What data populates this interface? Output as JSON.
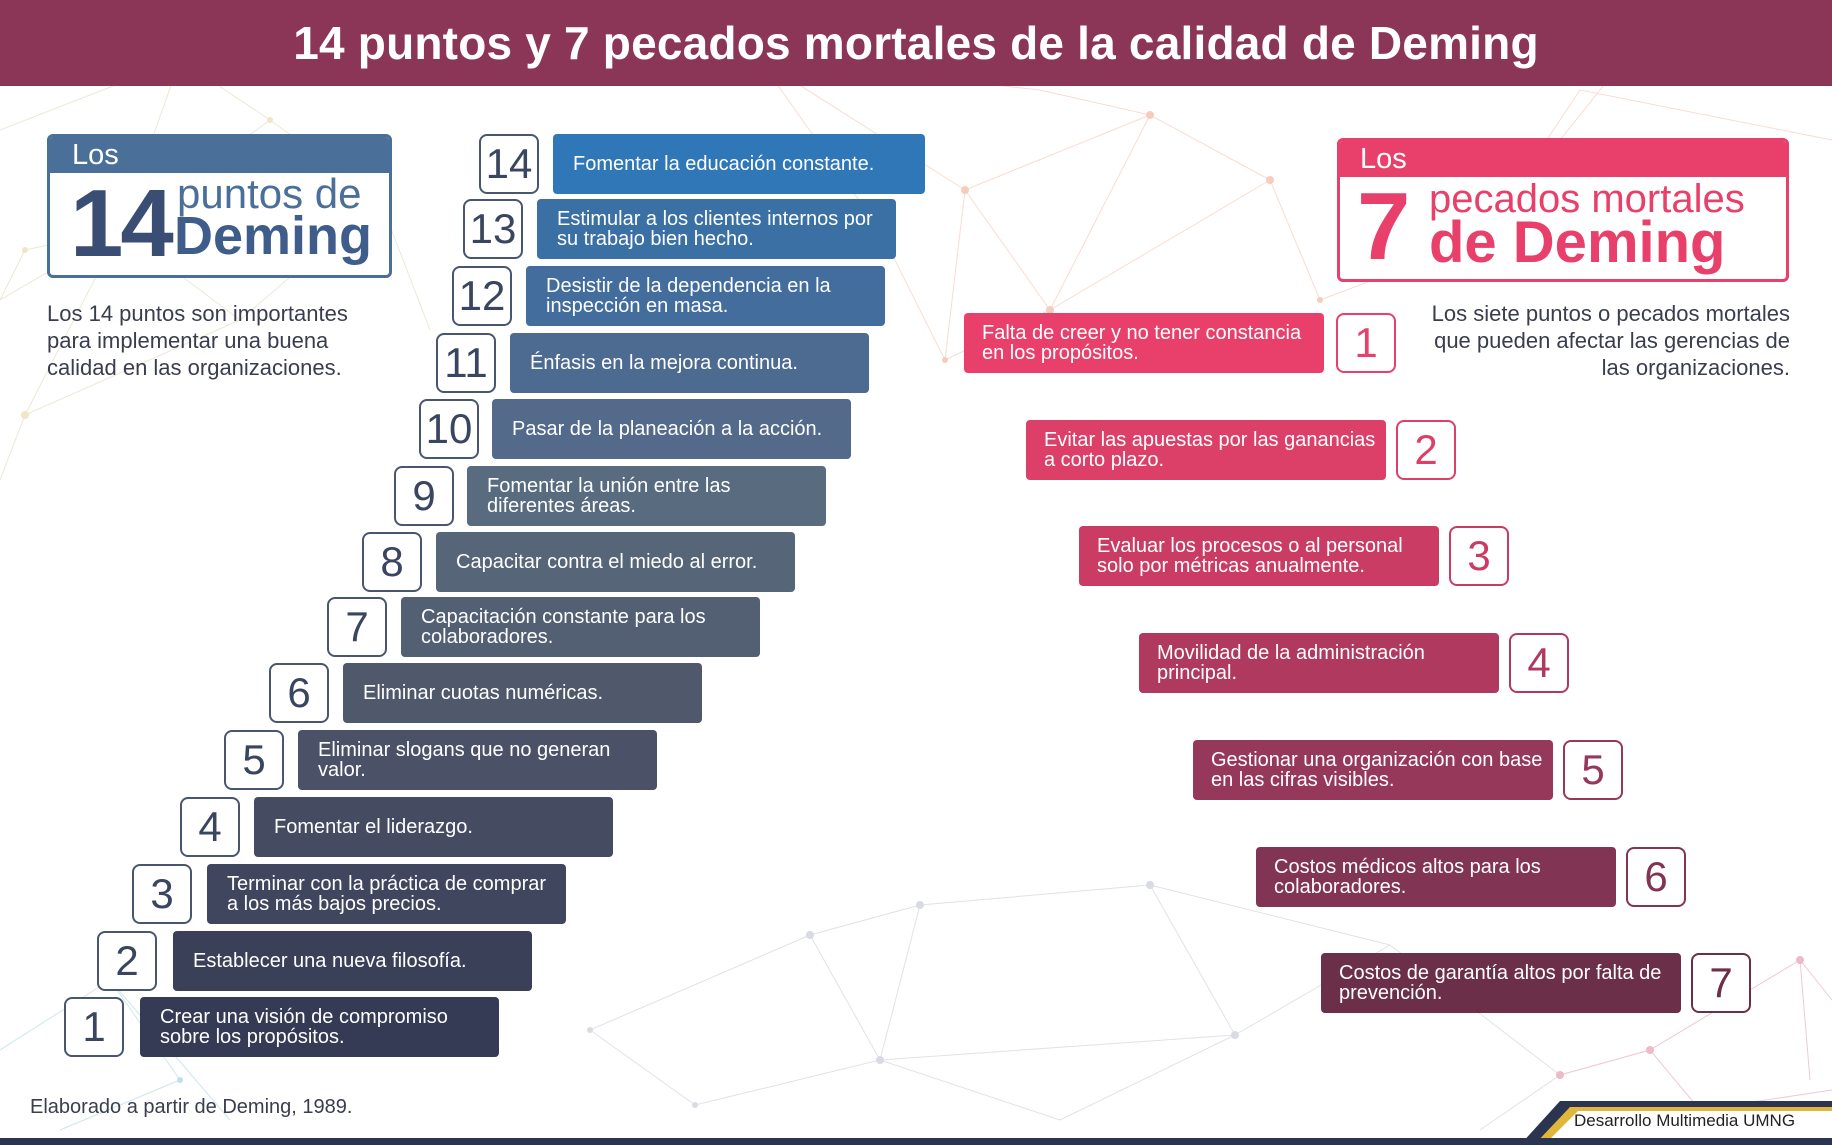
{
  "title": "14 puntos y 7 pecados mortales de la calidad de Deming",
  "left_title": {
    "tab": "Los",
    "number": "14",
    "line1": "puntos de",
    "line2": "Deming"
  },
  "left_description": "Los 14 puntos son importantes para implementar una buena calidad en las organizaciones.",
  "right_title": {
    "tab": "Los",
    "number": "7",
    "line1": "pecados mortales",
    "line2": "de Deming"
  },
  "right_description": "Los siete puntos o pecados mortales que pueden afectar las gerencias de las organizaciones.",
  "points": [
    {
      "number": "1",
      "text": "Crear una visión de compromiso sobre los propósitos."
    },
    {
      "number": "2",
      "text": "Establecer una nueva filosofía."
    },
    {
      "number": "3",
      "text": "Terminar con la práctica de comprar a los más bajos precios."
    },
    {
      "number": "4",
      "text": "Fomentar el liderazgo."
    },
    {
      "number": "5",
      "text": "Eliminar slogans que no generan valor."
    },
    {
      "number": "6",
      "text": "Eliminar cuotas numéricas."
    },
    {
      "number": "7",
      "text": "Capacitación constante para los colaboradores."
    },
    {
      "number": "8",
      "text": "Capacitar contra el miedo al error."
    },
    {
      "number": "9",
      "text": "Fomentar la unión entre las diferentes áreas."
    },
    {
      "number": "10",
      "text": "Pasar de la planeación a la acción."
    },
    {
      "number": "11",
      "text": "Énfasis en la mejora continua."
    },
    {
      "number": "12",
      "text": "Desistir de la dependencia en la inspección en masa."
    },
    {
      "number": "13",
      "text": "Estimular a los clientes internos por su trabajo bien hecho."
    },
    {
      "number": "14",
      "text": "Fomentar la educación constante."
    }
  ],
  "sins": [
    {
      "number": "1",
      "text": "Falta de creer y no tener constancia en los propósitos."
    },
    {
      "number": "2",
      "text": "Evitar las apuestas por las ganancias a corto plazo."
    },
    {
      "number": "3",
      "text": "Evaluar los procesos o al personal solo por métricas anualmente."
    },
    {
      "number": "4",
      "text": "Movilidad de la administración principal."
    },
    {
      "number": "5",
      "text": "Gestionar una organización con base en las cifras visibles."
    },
    {
      "number": "6",
      "text": "Costos médicos altos para los colaboradores."
    },
    {
      "number": "7",
      "text": "Costos de garantía altos por falta de prevención."
    }
  ],
  "colors": {
    "header": "#8b3557",
    "points": [
      "#353a55",
      "#3b4059",
      "#40465e",
      "#454c62",
      "#4b5267",
      "#50586c",
      "#535f73",
      "#566578",
      "#586b7f",
      "#536a8a",
      "#4d6a91",
      "#436d9c",
      "#3b70a5",
      "#2f77b6"
    ],
    "sins": [
      "#e8406a",
      "#dc3f68",
      "#ca3c64",
      "#b03a5f",
      "#96385a",
      "#823454",
      "#6b2f4a"
    ]
  },
  "source": "Elaborado a partir de Deming, 1989.",
  "footer": "Desarrollo Multimedia UMNG"
}
